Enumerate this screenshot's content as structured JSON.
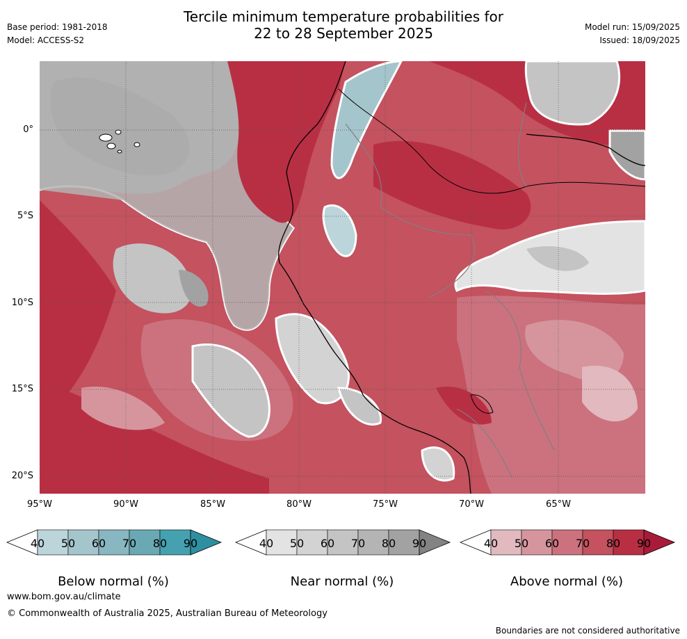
{
  "title": {
    "line1": "Tercile minimum temperature probabilities for",
    "line2": "22 to 28 September 2025"
  },
  "meta_left": {
    "base_period": "Base period: 1981-2018",
    "model": "Model: ACCESS-S2"
  },
  "meta_right": {
    "model_run": "Model run: 15/09/2025",
    "issued": "Issued: 18/09/2025"
  },
  "map": {
    "lat_labels": [
      "0°",
      "5°S",
      "10°S",
      "15°S",
      "20°S"
    ],
    "lon_labels": [
      "95°W",
      "90°W",
      "85°W",
      "80°W",
      "75°W",
      "70°W",
      "65°W"
    ]
  },
  "colorbars": [
    {
      "title": "Below normal (%)",
      "ticks": [
        "40",
        "50",
        "60",
        "70",
        "80",
        "90"
      ],
      "colors": [
        "#ffffff",
        "#bcd5da",
        "#a4c5cc",
        "#88b6c1",
        "#6aa9b4",
        "#45a1b0",
        "#2e8fa0"
      ]
    },
    {
      "title": "Near normal (%)",
      "ticks": [
        "40",
        "50",
        "60",
        "70",
        "80",
        "90"
      ],
      "colors": [
        "#ffffff",
        "#e3e3e3",
        "#d3d3d3",
        "#c4c4c4",
        "#b4b4b4",
        "#a2a2a2",
        "#838383"
      ]
    },
    {
      "title": "Above normal (%)",
      "ticks": [
        "40",
        "50",
        "60",
        "70",
        "80",
        "90"
      ],
      "colors": [
        "#ffffff",
        "#e1b9be",
        "#d6959d",
        "#cb727e",
        "#c4525f",
        "#b82f44",
        "#a81c39"
      ]
    }
  ],
  "footer": {
    "website": "www.bom.gov.au/climate",
    "copyright": "© Commonwealth of Australia 2025, Australian Bureau of Meteorology",
    "disclaimer": "Boundaries are not considered authoritative"
  }
}
